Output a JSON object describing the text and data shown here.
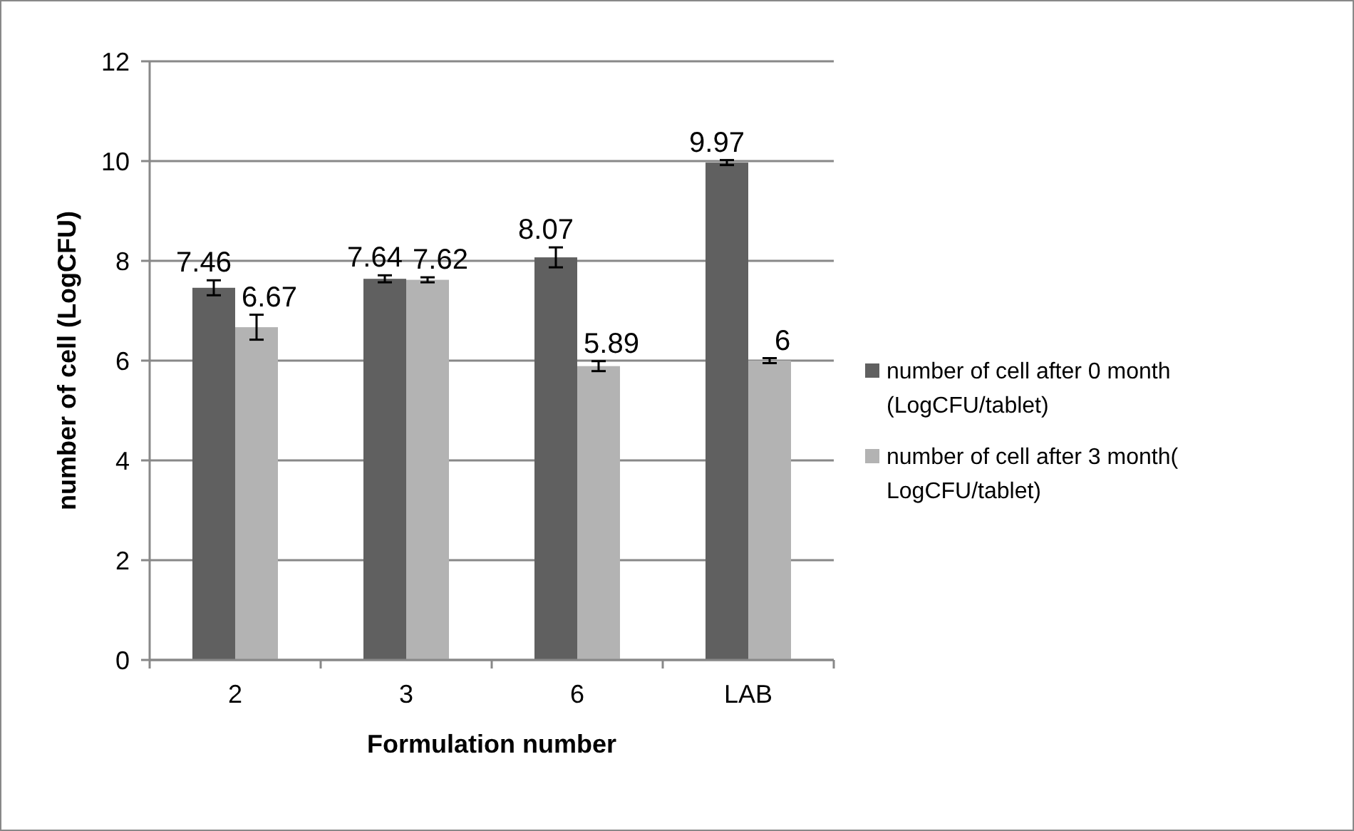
{
  "chart_data": {
    "type": "bar",
    "xlabel": "Formulation number",
    "ylabel": "number of cell (LogCFU)",
    "categories": [
      "2",
      "3",
      "6",
      "LAB"
    ],
    "series": [
      {
        "name": "number of cell after 0 month (LogCFU/tablet)",
        "color": "#606060",
        "values": [
          7.46,
          7.64,
          8.07,
          9.97
        ],
        "errors": [
          0.15,
          0.07,
          0.2,
          0.05
        ]
      },
      {
        "name": "number of cell after 3 month( LogCFU/tablet)",
        "color": "#b3b3b3",
        "values": [
          6.67,
          7.62,
          5.89,
          6
        ],
        "errors": [
          0.25,
          0.05,
          0.1,
          0.05
        ]
      }
    ],
    "ylim": [
      0,
      12
    ],
    "yticks": [
      0,
      2,
      4,
      6,
      8,
      10,
      12
    ],
    "grid": "y",
    "legend": "right",
    "data_labels": true
  }
}
